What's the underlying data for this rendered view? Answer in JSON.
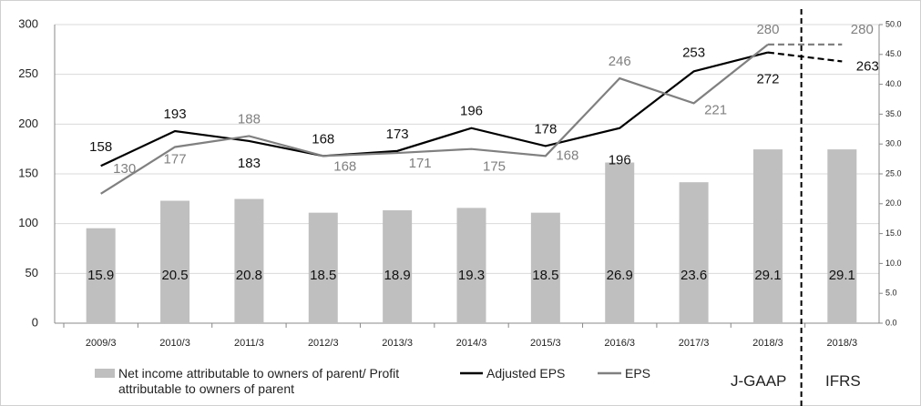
{
  "chart_data": {
    "type": "combo",
    "categories": [
      "2009/3",
      "2010/3",
      "2011/3",
      "2012/3",
      "2013/3",
      "2014/3",
      "2015/3",
      "2016/3",
      "2017/3",
      "2018/3",
      "2018/3"
    ],
    "ylim": [
      0,
      300
    ],
    "yticks": [
      0,
      50,
      100,
      150,
      200,
      250,
      300
    ],
    "y2lim": [
      0,
      50
    ],
    "y2ticks": [
      {
        "value": 0,
        "label": "0.0"
      },
      {
        "value": 5,
        "label": "5.0"
      },
      {
        "value": 10,
        "label": "10.0"
      },
      {
        "value": 15,
        "label": "15.0"
      },
      {
        "value": 20,
        "label": "20.0"
      },
      {
        "value": 25,
        "label": "25.0"
      },
      {
        "value": 30,
        "label": "30.0"
      },
      {
        "value": 35,
        "label": "35.0"
      },
      {
        "value": 40,
        "label": "40.0"
      },
      {
        "value": 45,
        "label": "45.0"
      },
      {
        "value": 50,
        "label": "50.0"
      }
    ],
    "grid": true,
    "series": [
      {
        "name": "Net income attributable to owners of parent/ Profit attributable to owners of parent",
        "type": "bar",
        "axis": "y2",
        "color": "#bfbfbf",
        "values": [
          15.9,
          20.5,
          20.8,
          18.5,
          18.9,
          19.3,
          18.5,
          26.9,
          23.6,
          29.1,
          29.1
        ]
      },
      {
        "name": "Adjusted EPS",
        "type": "line",
        "color": "#000000",
        "values": [
          158,
          193,
          183,
          168,
          173,
          196,
          178,
          196,
          253,
          272,
          263
        ]
      },
      {
        "name": "EPS",
        "type": "line",
        "color": "#808080",
        "values": [
          130,
          177,
          188,
          168,
          171,
          175,
          168,
          246,
          221,
          280,
          280
        ]
      }
    ],
    "annotations": [
      "J-GAAP",
      "IFRS"
    ]
  }
}
